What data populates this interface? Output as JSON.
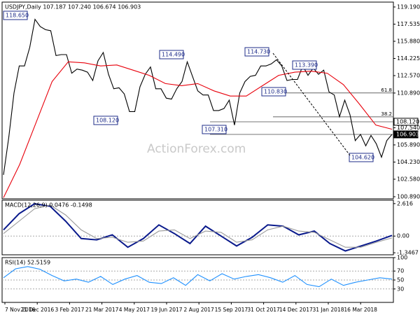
{
  "chart_data": [
    {
      "type": "line",
      "title": "USDJPY,Daily  107.187 107.240 106.674 106.903",
      "watermark": "ActionForex.com",
      "ylim": [
        100.69,
        119.66
      ],
      "yticks": [
        {
          "value": 119.19,
          "label": "119.190"
        },
        117.535,
        {
          "value": 115.88,
          "label": "115.880"
        },
        114.225,
        {
          "value": 112.57,
          "label": "112.570"
        },
        {
          "value": 110.89,
          "label": "110.890"
        },
        {
          "value": 107.54,
          "label": "107.540"
        },
        {
          "value": 105.89,
          "label": "105.890"
        },
        {
          "value": 104.23,
          "label": "104.230"
        },
        {
          "value": 102.58,
          "label": "102.580"
        },
        {
          "value": 100.89,
          "label": "100.890"
        }
      ],
      "series": [
        {
          "color": "#000000",
          "values": [
            103.0,
            106.6,
            110.9,
            113.5,
            113.5,
            115.3,
            118.0,
            117.3,
            117.0,
            116.9,
            114.5,
            114.6,
            114.6,
            112.8,
            113.2,
            113.1,
            112.9,
            112.1,
            114.0,
            114.8,
            112.7,
            111.3,
            111.4,
            110.8,
            109.1,
            109.1,
            111.5,
            112.7,
            113.4,
            111.3,
            111.3,
            110.4,
            110.3,
            111.3,
            112.0,
            113.9,
            112.5,
            111.1,
            110.7,
            110.7,
            109.2,
            109.2,
            109.4,
            110.2,
            107.8,
            110.9,
            112.0,
            112.5,
            112.6,
            113.5,
            113.5,
            113.7,
            114.1,
            113.5,
            112.1,
            112.2,
            112.2,
            113.5,
            112.6,
            113.3,
            112.7,
            113.1,
            111.0,
            110.7,
            108.6,
            110.2,
            108.8,
            106.3,
            106.9,
            105.8,
            106.8,
            106.0,
            104.7,
            106.3,
            106.9
          ]
        },
        {
          "color": "#e8000b",
          "values": [
            100.8,
            104.0,
            108.0,
            112.0,
            113.9,
            113.8,
            113.5,
            113.6,
            113.1,
            112.6,
            111.8,
            111.6,
            111.8,
            111.1,
            110.6,
            110.6,
            111.6,
            112.6,
            112.9,
            113.0,
            112.8,
            111.7,
            109.8,
            107.8,
            107.4
          ]
        }
      ],
      "annotations": [
        "118.650",
        "114.490",
        "114.730",
        "113.390",
        "110.830",
        "108.120",
        "107.310",
        "104.620"
      ],
      "levels": [
        {
          "label": "61.8",
          "value": 110.9
        },
        {
          "label": "38.2",
          "value": 108.6
        }
      ],
      "price_tags": [
        {
          "label": "108.120",
          "value": 108.12
        },
        {
          "label": "106.903",
          "value": 106.903
        }
      ]
    },
    {
      "type": "line",
      "title": "MACD(12,26,9) 0.0476 -0.1498",
      "ylim": [
        -1.51,
        2.89
      ],
      "yticks": [
        2.616,
        {
          "value": 0,
          "label": "0.00"
        },
        -1.3467
      ],
      "series": [
        {
          "color": "#0a1a8c",
          "values": [
            0.5,
            1.8,
            2.6,
            2.4,
            1.2,
            -0.2,
            -0.3,
            0.1,
            -0.9,
            -0.2,
            0.9,
            0.2,
            -0.6,
            0.8,
            0.0,
            -0.8,
            -0.1,
            0.9,
            0.8,
            0.1,
            0.4,
            -0.6,
            -1.2,
            -0.8,
            -0.4,
            0.05
          ]
        },
        {
          "color": "#9a9a9a",
          "values": [
            0.2,
            1.2,
            2.2,
            2.5,
            1.7,
            0.5,
            -0.2,
            -0.1,
            -0.5,
            -0.4,
            0.4,
            0.5,
            -0.2,
            0.4,
            0.3,
            -0.5,
            -0.3,
            0.5,
            0.8,
            0.4,
            0.3,
            -0.3,
            -0.9,
            -0.9,
            -0.5,
            -0.15
          ]
        }
      ]
    },
    {
      "type": "line",
      "title": "RSI(14) 52.5159",
      "ylim": [
        0,
        100
      ],
      "yticks": [
        100,
        70,
        50,
        30
      ],
      "series": [
        {
          "color": "#1e90ff",
          "values": [
            55,
            75,
            80,
            74,
            60,
            48,
            52,
            45,
            58,
            40,
            52,
            60,
            45,
            42,
            55,
            38,
            62,
            48,
            64,
            52,
            58,
            62,
            55,
            45,
            60,
            40,
            35,
            52,
            38,
            45,
            50,
            55,
            52
          ]
        }
      ],
      "date_labels": [
        "7 Nov 2016",
        "21 Dec 2016",
        "3 Feb 2017",
        "21 Mar 2017",
        "4 May 2017",
        "19 Jun 2017",
        "2 Aug 2017",
        "15 Sep 2017",
        "31 Oct 2017",
        "14 Dec 2017",
        "31 Jan 2018",
        "16 Mar 2018"
      ]
    }
  ]
}
